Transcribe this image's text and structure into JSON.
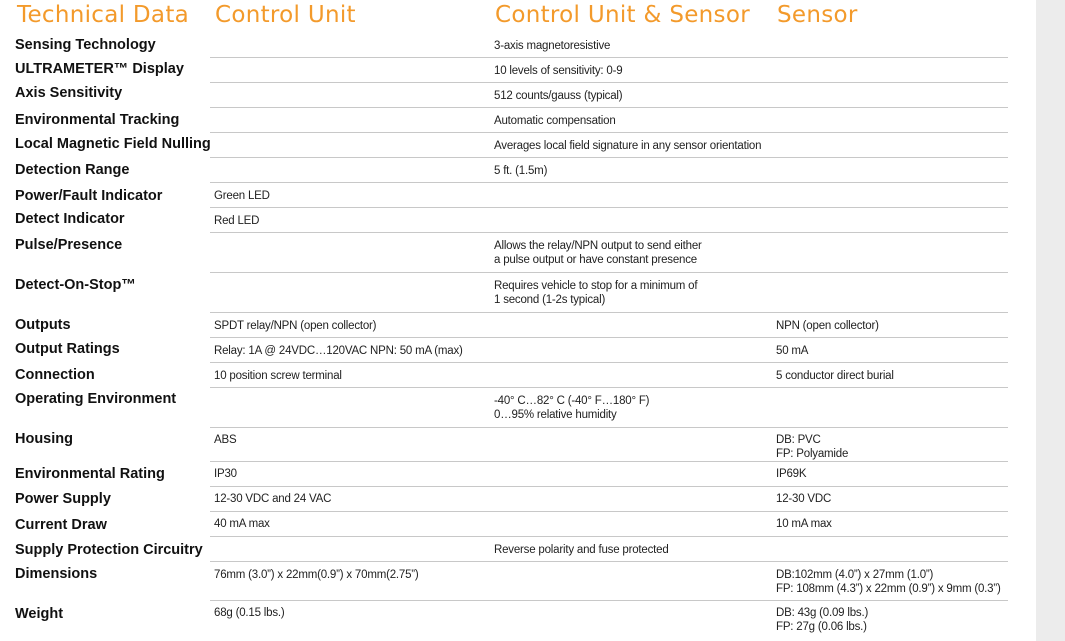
{
  "headers": {
    "technical_data": "Technical Data",
    "control_unit": "Control Unit",
    "both": "Control Unit & Sensor",
    "sensor": "Sensor"
  },
  "rows": [
    {
      "label": "Sensing Technology",
      "control_unit": [],
      "both": [
        "3-axis magnetoresistive"
      ],
      "sensor": []
    },
    {
      "label": "ULTRAMETER™ Display",
      "control_unit": [],
      "both": [
        "10 levels of sensitivity: 0-9"
      ],
      "sensor": []
    },
    {
      "label": "Axis Sensitivity",
      "control_unit": [],
      "both": [
        "512 counts/gauss (typical)"
      ],
      "sensor": []
    },
    {
      "label": "Environmental Tracking",
      "control_unit": [],
      "both": [
        "Automatic compensation"
      ],
      "sensor": []
    },
    {
      "label": "Local Magnetic Field Nulling",
      "control_unit": [],
      "both": [
        "Averages local field signature in any sensor orientation"
      ],
      "sensor": []
    },
    {
      "label": "Detection Range",
      "control_unit": [],
      "both": [
        "5 ft. (1.5m)"
      ],
      "sensor": []
    },
    {
      "label": "Power/Fault Indicator",
      "control_unit": [
        "Green LED"
      ],
      "both": [],
      "sensor": []
    },
    {
      "label": "Detect Indicator",
      "control_unit": [
        "Red LED"
      ],
      "both": [],
      "sensor": []
    },
    {
      "label": "Pulse/Presence",
      "control_unit": [],
      "both": [
        "Allows the relay/NPN output to send either",
        "a pulse output or have constant presence"
      ],
      "sensor": []
    },
    {
      "label": "Detect-On-Stop™",
      "control_unit": [],
      "both": [
        "Requires vehicle to stop for a minimum of",
        "1 second (1-2s typical)"
      ],
      "sensor": []
    },
    {
      "label": "Outputs",
      "control_unit": [
        "SPDT relay/NPN (open collector)"
      ],
      "both": [],
      "sensor": [
        "NPN (open collector)"
      ]
    },
    {
      "label": "Output Ratings",
      "control_unit": [
        "Relay: 1A @ 24VDC…120VAC  NPN: 50 mA (max)"
      ],
      "both": [],
      "sensor": [
        "50 mA"
      ]
    },
    {
      "label": "Connection",
      "control_unit": [
        "10 position screw terminal"
      ],
      "both": [],
      "sensor": [
        "5 conductor direct burial"
      ]
    },
    {
      "label": "Operating Environment",
      "control_unit": [],
      "both": [
        "-40° C…82° C (-40° F…180° F)",
        "0…95% relative humidity"
      ],
      "sensor": []
    },
    {
      "label": "Housing",
      "control_unit": [
        "ABS"
      ],
      "both": [],
      "sensor": [
        "DB: PVC",
        "FP: Polyamide"
      ]
    },
    {
      "label": "Environmental Rating",
      "control_unit": [
        "IP30"
      ],
      "both": [],
      "sensor": [
        "IP69K"
      ]
    },
    {
      "label": "Power Supply",
      "control_unit": [
        "12-30 VDC and 24 VAC"
      ],
      "both": [],
      "sensor": [
        "12-30 VDC"
      ]
    },
    {
      "label": "Current Draw",
      "control_unit": [
        "40 mA max"
      ],
      "both": [],
      "sensor": [
        "10 mA max"
      ]
    },
    {
      "label": "Supply Protection Circuitry",
      "control_unit": [],
      "both": [
        "Reverse polarity and fuse protected"
      ],
      "sensor": []
    },
    {
      "label": "Dimensions",
      "control_unit": [
        "76mm (3.0”) x 22mm(0.9”) x 70mm(2.75”)"
      ],
      "both": [],
      "sensor": [
        "DB:102mm (4.0”) x 27mm (1.0”)",
        "FP: 108mm (4.3”) x 22mm (0.9”) x 9mm (0.3”)"
      ]
    },
    {
      "label": "Weight",
      "control_unit": [
        "68g (0.15 lbs.)"
      ],
      "both": [],
      "sensor": [
        "DB: 43g (0.09 lbs.)",
        "FP: 27g (0.06 lbs.)"
      ]
    }
  ]
}
